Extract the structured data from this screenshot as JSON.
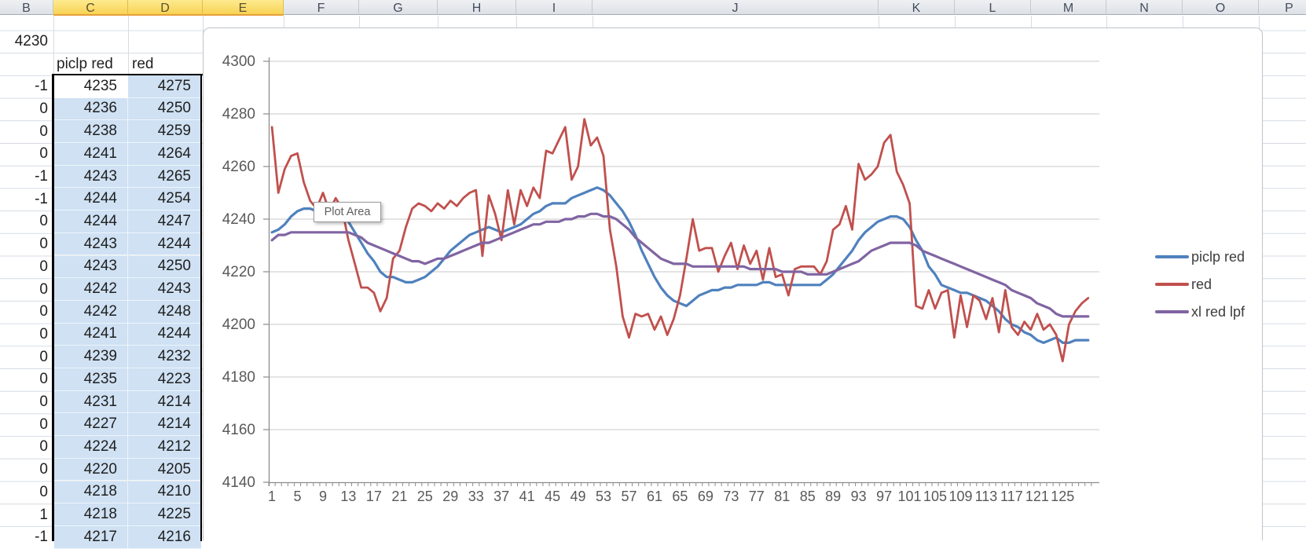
{
  "window": {
    "app_kind": "spreadsheet-with-embedded-chart"
  },
  "column_headers": {
    "letters": [
      "B",
      "C",
      "D",
      "E",
      "F",
      "G",
      "H",
      "I",
      "J",
      "K",
      "L",
      "M",
      "N",
      "O",
      "P"
    ],
    "selected": [
      "C",
      "D",
      "E"
    ]
  },
  "cells": {
    "b2": "4230"
  },
  "table": {
    "headers": [
      "piclp red",
      "red"
    ],
    "rows": [
      [
        "-1",
        4235,
        4275
      ],
      [
        "0",
        4236,
        4250
      ],
      [
        "0",
        4238,
        4259
      ],
      [
        "0",
        4241,
        4264
      ],
      [
        "-1",
        4243,
        4265
      ],
      [
        "-1",
        4244,
        4254
      ],
      [
        "0",
        4244,
        4247
      ],
      [
        "0",
        4243,
        4244
      ],
      [
        "0",
        4243,
        4250
      ],
      [
        "0",
        4242,
        4243
      ],
      [
        "0",
        4242,
        4248
      ],
      [
        "0",
        4241,
        4244
      ],
      [
        "0",
        4239,
        4232
      ],
      [
        "0",
        4235,
        4223
      ],
      [
        "0",
        4231,
        4214
      ],
      [
        "0",
        4227,
        4214
      ],
      [
        "0",
        4224,
        4212
      ],
      [
        "0",
        4220,
        4205
      ],
      [
        "0",
        4218,
        4210
      ],
      [
        "1",
        4218,
        4225
      ]
    ],
    "partial_row": [
      "-1",
      4217,
      4216
    ],
    "active_cell_value": "4235"
  },
  "tooltip": {
    "text": "Plot Area"
  },
  "chart_data": {
    "type": "line",
    "title": "",
    "xlabel": "",
    "ylabel": "",
    "ylim": [
      4140,
      4300
    ],
    "y_ticks": [
      4140,
      4160,
      4180,
      4200,
      4220,
      4240,
      4260,
      4280,
      4300
    ],
    "x_tick_labels": [
      "1",
      "5",
      "9",
      "13",
      "17",
      "21",
      "25",
      "29",
      "33",
      "37",
      "41",
      "45",
      "49",
      "53",
      "57",
      "61",
      "65",
      "69",
      "73",
      "77",
      "81",
      "85",
      "89",
      "93",
      "97",
      "101",
      "105",
      "109",
      "113",
      "117",
      "121",
      "125"
    ],
    "n_points": 129,
    "grid": true,
    "legend_position": "right",
    "series": [
      {
        "name": "piclp red",
        "color": "#4F81BD",
        "values": [
          4235,
          4236,
          4238,
          4241,
          4243,
          4244,
          4244,
          4243,
          4243,
          4242,
          4242,
          4241,
          4239,
          4235,
          4231,
          4227,
          4224,
          4220,
          4218,
          4218,
          4217,
          4216,
          4216,
          4217,
          4218,
          4220,
          4222,
          4225,
          4228,
          4230,
          4232,
          4234,
          4235,
          4236,
          4237,
          4236,
          4235,
          4236,
          4237,
          4238,
          4240,
          4242,
          4243,
          4245,
          4246,
          4246,
          4246,
          4248,
          4249,
          4250,
          4251,
          4252,
          4251,
          4249,
          4246,
          4243,
          4239,
          4234,
          4228,
          4223,
          4218,
          4214,
          4211,
          4209,
          4208,
          4207,
          4209,
          4211,
          4212,
          4213,
          4213,
          4214,
          4214,
          4215,
          4215,
          4215,
          4215,
          4216,
          4216,
          4215,
          4215,
          4215,
          4215,
          4215,
          4215,
          4215,
          4215,
          4217,
          4219,
          4222,
          4225,
          4228,
          4232,
          4235,
          4237,
          4239,
          4240,
          4241,
          4241,
          4240,
          4237,
          4232,
          4228,
          4222,
          4219,
          4215,
          4214,
          4213,
          4212,
          4212,
          4211,
          4210,
          4209,
          4207,
          4205,
          4202,
          4200,
          4199,
          4197,
          4196,
          4194,
          4193,
          4194,
          4195,
          4193,
          4193,
          4194,
          4194,
          4194
        ]
      },
      {
        "name": "red",
        "color": "#C0504D",
        "values": [
          4275,
          4250,
          4259,
          4264,
          4265,
          4254,
          4247,
          4244,
          4250,
          4243,
          4248,
          4244,
          4232,
          4223,
          4214,
          4214,
          4212,
          4205,
          4210,
          4225,
          4228,
          4237,
          4244,
          4246,
          4245,
          4243,
          4246,
          4244,
          4247,
          4245,
          4248,
          4250,
          4251,
          4226,
          4249,
          4242,
          4232,
          4251,
          4238,
          4251,
          4245,
          4252,
          4248,
          4266,
          4265,
          4270,
          4275,
          4255,
          4260,
          4278,
          4268,
          4271,
          4264,
          4236,
          4222,
          4203,
          4195,
          4204,
          4203,
          4204,
          4198,
          4203,
          4196,
          4202,
          4211,
          4225,
          4240,
          4228,
          4229,
          4229,
          4220,
          4226,
          4231,
          4221,
          4230,
          4223,
          4228,
          4217,
          4229,
          4218,
          4219,
          4211,
          4221,
          4222,
          4222,
          4222,
          4219,
          4224,
          4236,
          4238,
          4245,
          4236,
          4261,
          4255,
          4257,
          4260,
          4269,
          4272,
          4258,
          4253,
          4246,
          4207,
          4206,
          4213,
          4206,
          4212,
          4213,
          4195,
          4211,
          4199,
          4211,
          4209,
          4202,
          4210,
          4197,
          4213,
          4199,
          4196,
          4201,
          4198,
          4204,
          4198,
          4200,
          4196,
          4186,
          4200,
          4205,
          4208,
          4210
        ]
      },
      {
        "name": "xl red lpf",
        "color": "#8064A2",
        "values": [
          4232,
          4234,
          4234,
          4235,
          4235,
          4235,
          4235,
          4235,
          4235,
          4235,
          4235,
          4235,
          4235,
          4234,
          4233,
          4231,
          4230,
          4229,
          4228,
          4227,
          4226,
          4225,
          4224,
          4224,
          4223,
          4224,
          4225,
          4225,
          4226,
          4227,
          4228,
          4229,
          4230,
          4231,
          4231,
          4232,
          4233,
          4234,
          4235,
          4236,
          4237,
          4238,
          4238,
          4239,
          4239,
          4239,
          4240,
          4240,
          4241,
          4241,
          4242,
          4242,
          4241,
          4241,
          4240,
          4238,
          4236,
          4233,
          4231,
          4229,
          4227,
          4225,
          4224,
          4223,
          4223,
          4223,
          4222,
          4222,
          4222,
          4222,
          4222,
          4222,
          4222,
          4222,
          4222,
          4221,
          4221,
          4221,
          4221,
          4221,
          4220,
          4220,
          4220,
          4220,
          4219,
          4219,
          4219,
          4219,
          4220,
          4221,
          4222,
          4223,
          4224,
          4226,
          4228,
          4229,
          4230,
          4231,
          4231,
          4231,
          4231,
          4230,
          4228,
          4227,
          4226,
          4225,
          4224,
          4223,
          4222,
          4221,
          4220,
          4219,
          4218,
          4217,
          4216,
          4215,
          4213,
          4212,
          4211,
          4210,
          4208,
          4207,
          4206,
          4204,
          4203,
          4203,
          4203,
          4203,
          4203
        ]
      }
    ]
  },
  "colors": {
    "selection_fill": "#cfe1f3",
    "selected_header_fill": "#f8d355",
    "selected_header_border": "#e5a037",
    "sheet_gridline": "#d6dce4",
    "chart_gridline": "#d4d4d4",
    "axis_line": "#8c8c8c",
    "axis_text": "#595959",
    "marquee_border": "#000000"
  }
}
